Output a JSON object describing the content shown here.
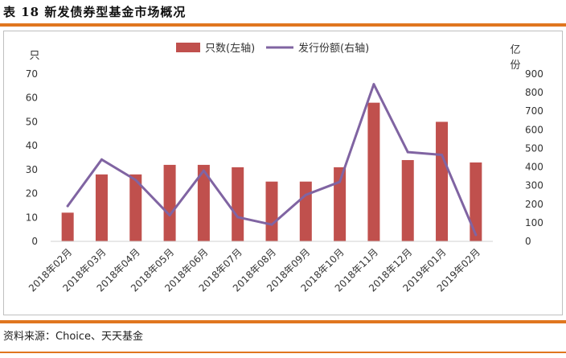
{
  "header": {
    "title": "表 18  新发债券型基金市场概况"
  },
  "footer": {
    "source": "资料来源：Choice、天天基金"
  },
  "colors": {
    "bar": "#c0504d",
    "line": "#8064a2",
    "accent": "#e0761f"
  },
  "chart_data": {
    "type": "bar+line",
    "title": "",
    "y_left_label": "只",
    "y_right_label": "亿\n份",
    "y_left_lim": [
      0,
      70
    ],
    "y_left_ticks": [
      0,
      10,
      20,
      30,
      40,
      50,
      60,
      70
    ],
    "y_right_lim": [
      0,
      900
    ],
    "y_right_ticks": [
      0,
      100,
      200,
      300,
      400,
      500,
      600,
      700,
      800,
      900
    ],
    "categories": [
      "2018年02月",
      "2018年03月",
      "2018年04月",
      "2018年05月",
      "2018年06月",
      "2018年07月",
      "2018年08月",
      "2018年09月",
      "2018年10月",
      "2018年11月",
      "2018年12月",
      "2019年01月",
      "2019年02月"
    ],
    "series": [
      {
        "name": "只数(左轴)",
        "type": "bar",
        "axis": "left",
        "values": [
          12,
          28,
          28,
          32,
          32,
          31,
          25,
          25,
          31,
          58,
          34,
          50,
          33
        ]
      },
      {
        "name": "发行份额(右轴)",
        "type": "line",
        "axis": "right",
        "values": [
          190,
          440,
          330,
          140,
          380,
          130,
          90,
          250,
          320,
          845,
          480,
          465,
          35
        ]
      }
    ],
    "legend_position": "top-center",
    "grid": false
  }
}
